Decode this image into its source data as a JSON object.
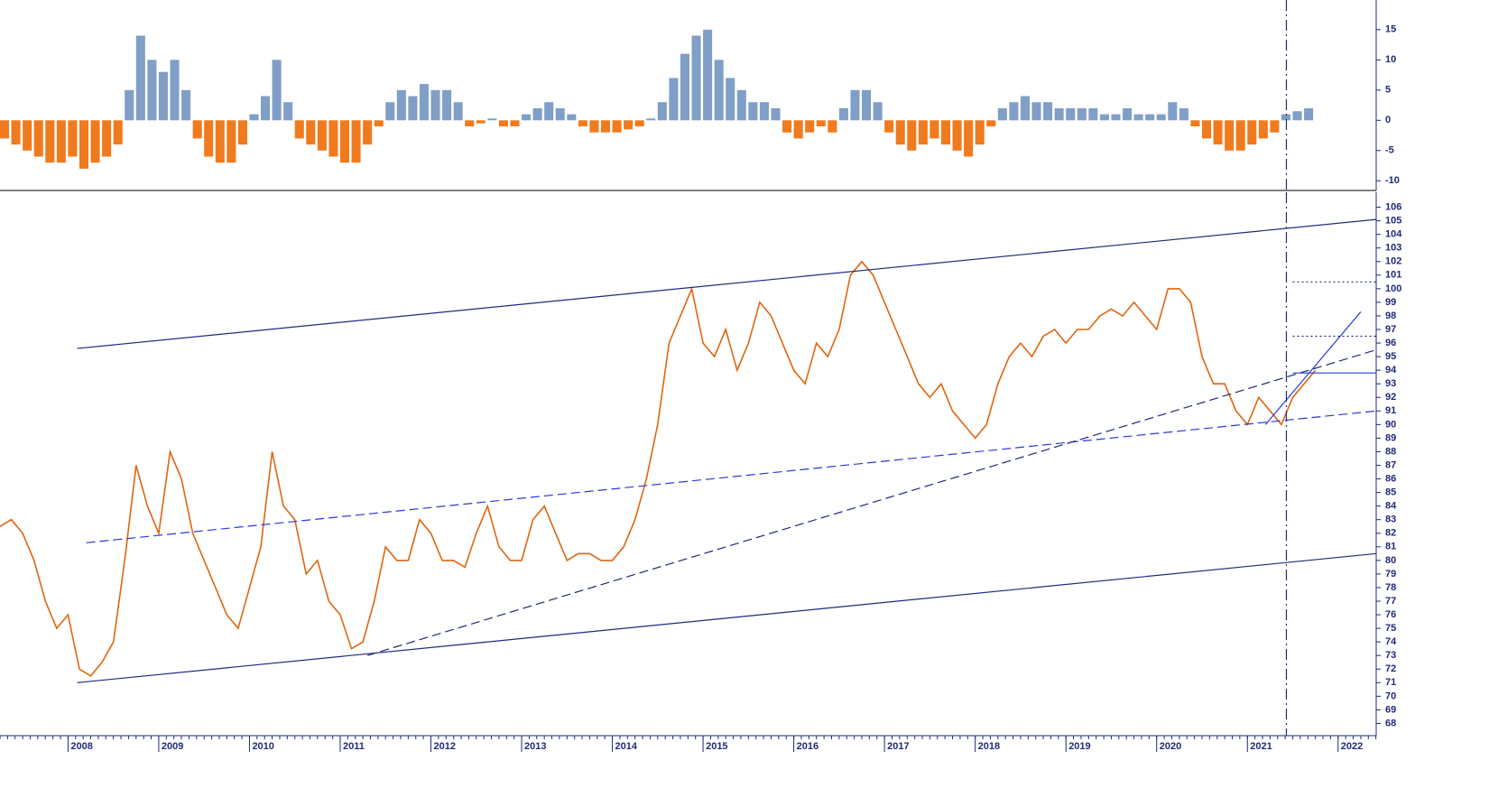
{
  "chart_data": [
    {
      "type": "bar",
      "xlim": [
        2007.25,
        2022.42
      ],
      "ylim": [
        -11.6,
        19.9
      ],
      "yticks": [
        15,
        10,
        5,
        0,
        -5,
        -10
      ],
      "positive_color": "#7f9fc6",
      "negative_color": "#f07a1e",
      "vline": 2021.43,
      "x": [
        2007.25,
        2007.375,
        2007.5,
        2007.625,
        2007.75,
        2007.875,
        2008,
        2008.125,
        2008.25,
        2008.375,
        2008.5,
        2008.625,
        2008.75,
        2008.875,
        2009,
        2009.125,
        2009.25,
        2009.375,
        2009.5,
        2009.625,
        2009.75,
        2009.875,
        2010,
        2010.125,
        2010.25,
        2010.375,
        2010.5,
        2010.625,
        2010.75,
        2010.875,
        2011,
        2011.125,
        2011.25,
        2011.375,
        2011.5,
        2011.625,
        2011.75,
        2011.875,
        2012,
        2012.125,
        2012.25,
        2012.375,
        2012.5,
        2012.625,
        2012.75,
        2012.875,
        2013,
        2013.125,
        2013.25,
        2013.375,
        2013.5,
        2013.625,
        2013.75,
        2013.875,
        2014,
        2014.125,
        2014.25,
        2014.375,
        2014.5,
        2014.625,
        2014.75,
        2014.875,
        2015,
        2015.125,
        2015.25,
        2015.375,
        2015.5,
        2015.625,
        2015.75,
        2015.875,
        2016,
        2016.125,
        2016.25,
        2016.375,
        2016.5,
        2016.625,
        2016.75,
        2016.875,
        2017,
        2017.125,
        2017.25,
        2017.375,
        2017.5,
        2017.625,
        2017.75,
        2017.875,
        2018,
        2018.125,
        2018.25,
        2018.375,
        2018.5,
        2018.625,
        2018.75,
        2018.875,
        2019,
        2019.125,
        2019.25,
        2019.375,
        2019.5,
        2019.625,
        2019.75,
        2019.875,
        2020,
        2020.125,
        2020.25,
        2020.375,
        2020.5,
        2020.625,
        2020.75,
        2020.875,
        2021,
        2021.125,
        2021.25,
        2021.375,
        2021.5,
        2021.625
      ],
      "values": [
        -3,
        -4,
        -5,
        -6,
        -7,
        -7,
        -6,
        -8,
        -7,
        -6,
        -4,
        5,
        14,
        10,
        8,
        10,
        5,
        -3,
        -6,
        -7,
        -7,
        -4,
        1,
        4,
        10,
        3,
        -3,
        -4,
        -5,
        -6,
        -7,
        -7,
        -4,
        -1,
        3,
        5,
        4,
        6,
        5,
        5,
        3,
        -1,
        -0.5,
        0.3,
        -1,
        -1,
        1,
        2,
        3,
        2,
        1,
        -1,
        -2,
        -2,
        -2,
        -1.5,
        -1,
        0.3,
        3,
        7,
        11,
        14,
        15,
        10,
        7,
        5,
        3,
        3,
        2,
        -2,
        -3,
        -2,
        -1,
        -2,
        2,
        5,
        5,
        3,
        -2,
        -4,
        -5,
        -4,
        -3,
        -4,
        -5,
        -6,
        -4,
        -1,
        2,
        3,
        4,
        3,
        3,
        2,
        2,
        2,
        2,
        1,
        1,
        2,
        1,
        1,
        1,
        3,
        2,
        -1,
        -3,
        -4,
        -5,
        -5,
        -4,
        -3,
        -2,
        1,
        1.5,
        2
      ]
    },
    {
      "type": "line",
      "xlim": [
        2007.25,
        2022.42
      ],
      "ylim": [
        67.1,
        107.1
      ],
      "color": "#e0650f",
      "vline": 2021.43,
      "xticks": [
        2008,
        2009,
        2010,
        2011,
        2012,
        2013,
        2014,
        2015,
        2016,
        2017,
        2018,
        2019,
        2020,
        2021,
        2022
      ],
      "yticks": [
        106,
        105,
        104,
        103,
        102,
        101,
        100,
        99,
        98,
        97,
        96,
        95,
        94,
        93,
        92,
        91,
        90,
        89,
        88,
        87,
        86,
        85,
        84,
        83,
        82,
        81,
        80,
        79,
        78,
        77,
        76,
        75,
        74,
        73,
        72,
        71,
        70,
        69,
        68
      ],
      "x": [
        2007.25,
        2007.375,
        2007.5,
        2007.625,
        2007.75,
        2007.875,
        2008,
        2008.125,
        2008.25,
        2008.375,
        2008.5,
        2008.625,
        2008.75,
        2008.875,
        2009,
        2009.125,
        2009.25,
        2009.375,
        2009.5,
        2009.625,
        2009.75,
        2009.875,
        2010,
        2010.125,
        2010.25,
        2010.375,
        2010.5,
        2010.625,
        2010.75,
        2010.875,
        2011,
        2011.125,
        2011.25,
        2011.375,
        2011.5,
        2011.625,
        2011.75,
        2011.875,
        2012,
        2012.125,
        2012.25,
        2012.375,
        2012.5,
        2012.625,
        2012.75,
        2012.875,
        2013,
        2013.125,
        2013.25,
        2013.375,
        2013.5,
        2013.625,
        2013.75,
        2013.875,
        2014,
        2014.125,
        2014.25,
        2014.375,
        2014.5,
        2014.625,
        2014.75,
        2014.875,
        2015,
        2015.125,
        2015.25,
        2015.375,
        2015.5,
        2015.625,
        2015.75,
        2015.875,
        2016,
        2016.125,
        2016.25,
        2016.375,
        2016.5,
        2016.625,
        2016.75,
        2016.875,
        2017,
        2017.125,
        2017.25,
        2017.375,
        2017.5,
        2017.625,
        2017.75,
        2017.875,
        2018,
        2018.125,
        2018.25,
        2018.375,
        2018.5,
        2018.625,
        2018.75,
        2018.875,
        2019,
        2019.125,
        2019.25,
        2019.375,
        2019.5,
        2019.625,
        2019.75,
        2019.875,
        2020,
        2020.125,
        2020.25,
        2020.375,
        2020.5,
        2020.625,
        2020.75,
        2020.875,
        2021,
        2021.125,
        2021.25,
        2021.375,
        2021.5,
        2021.625,
        2021.75
      ],
      "values": [
        82.5,
        83,
        82,
        80,
        77,
        75,
        76,
        72,
        71.5,
        72.5,
        74,
        80,
        87,
        84,
        82,
        88,
        86,
        82,
        80,
        78,
        76,
        75,
        78,
        81,
        88,
        84,
        83,
        79,
        80,
        77,
        76,
        73.5,
        74,
        77,
        81,
        80,
        80,
        83,
        82,
        80,
        80,
        79.5,
        82,
        84,
        81,
        80,
        80,
        83,
        84,
        82,
        80,
        80.5,
        80.5,
        80,
        80,
        81,
        83,
        86,
        90,
        96,
        98,
        100,
        96,
        95,
        97,
        94,
        96,
        99,
        98,
        96,
        94,
        93,
        96,
        95,
        97,
        101,
        102,
        101,
        99,
        97,
        95,
        93,
        92,
        93,
        91,
        90,
        89,
        90,
        93,
        95,
        96,
        95,
        96.5,
        97,
        96,
        97,
        97,
        98,
        98.5,
        98,
        99,
        98,
        97,
        100,
        100,
        99,
        95,
        93,
        93,
        91,
        90,
        92,
        91,
        90,
        92,
        93,
        94
      ],
      "lines": [
        {
          "x": [
            2008.1,
            2022.42
          ],
          "y": [
            95.6,
            105.1
          ],
          "color": "#1f2a7a",
          "dash": "solid"
        },
        {
          "x": [
            2008.1,
            2022.42
          ],
          "y": [
            71,
            80.5
          ],
          "color": "#1f2a7a",
          "dash": "solid"
        },
        {
          "x": [
            2008.2,
            2022.42
          ],
          "y": [
            81.3,
            91
          ],
          "color": "#2a3ad8",
          "dash": "dashed"
        },
        {
          "x": [
            2011.3,
            2022.42
          ],
          "y": [
            73,
            95.5
          ],
          "color": "#1f2a7a",
          "dash": "dashed"
        },
        {
          "x": [
            2021.2,
            2022.25
          ],
          "y": [
            90,
            98.3
          ],
          "color": "#2a3ad8",
          "dash": "solid"
        },
        {
          "x": [
            2021.5,
            2022.42
          ],
          "y": [
            93.8,
            93.8
          ],
          "color": "#2a3ad8",
          "dash": "solid"
        },
        {
          "x": [
            2021.5,
            2022.42
          ],
          "y": [
            100.5,
            100.5
          ],
          "color": "#1f2a7a",
          "dash": "dotted"
        },
        {
          "x": [
            2021.5,
            2022.42
          ],
          "y": [
            96.5,
            96.5
          ],
          "color": "#1f2a7a",
          "dash": "dotted"
        }
      ]
    }
  ]
}
